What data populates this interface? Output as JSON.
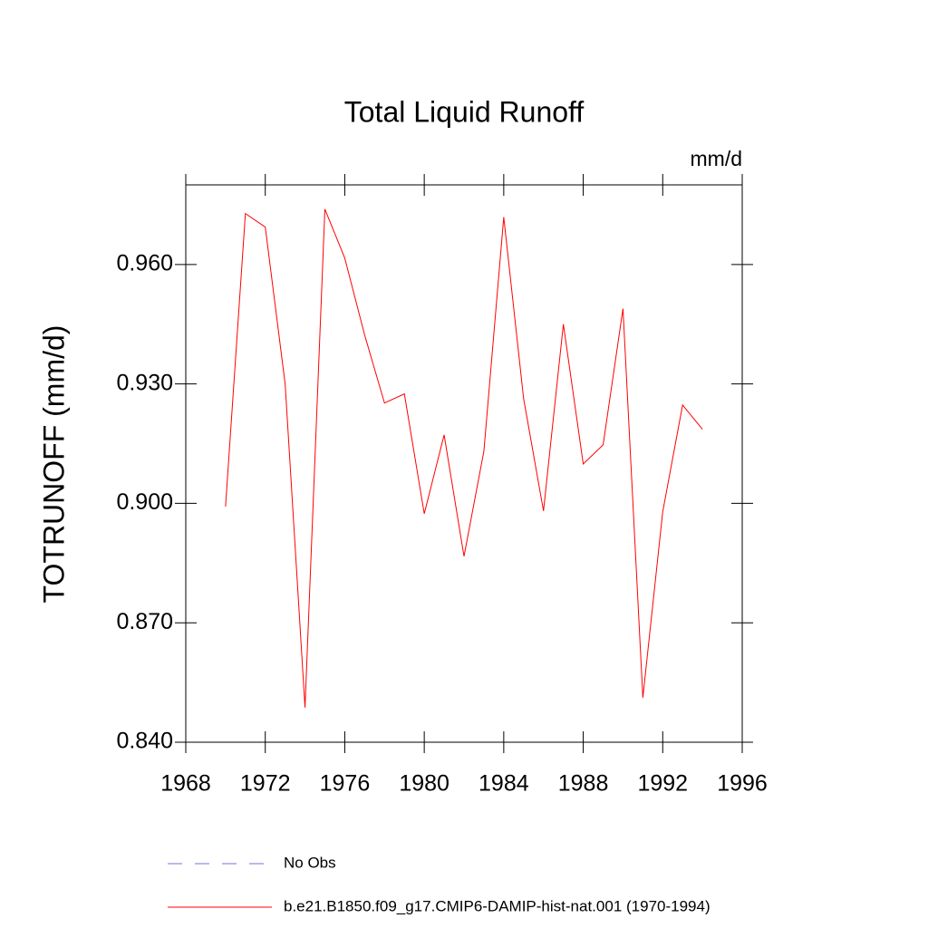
{
  "chart_data": {
    "type": "line",
    "title": "Total Liquid Runoff",
    "units": "mm/d",
    "ylabel": "TOTRUNOFF  (mm/d)",
    "x": [
      1970,
      1971,
      1972,
      1973,
      1974,
      1975,
      1976,
      1977,
      1978,
      1979,
      1980,
      1981,
      1982,
      1983,
      1984,
      1985,
      1986,
      1987,
      1988,
      1989,
      1990,
      1991,
      1992,
      1993,
      1994
    ],
    "series": [
      {
        "name": "No Obs",
        "color": "#7070e0",
        "dash": true,
        "values": [
          null,
          null,
          null,
          null,
          null,
          null,
          null,
          null,
          null,
          null,
          null,
          null,
          null,
          null,
          null,
          null,
          null,
          null,
          null,
          null,
          null,
          null,
          null,
          null,
          null
        ]
      },
      {
        "name": "b.e21.B1850.f09_g17.CMIP6-DAMIP-hist-nat.001 (1970-1994)",
        "color": "#ff0000",
        "dash": false,
        "values": [
          0.8992,
          0.9728,
          0.9694,
          0.93,
          0.8487,
          0.9739,
          0.9616,
          0.9423,
          0.9252,
          0.9275,
          0.8974,
          0.9172,
          0.8867,
          0.9131,
          0.9719,
          0.9263,
          0.8981,
          0.945,
          0.9099,
          0.9147,
          0.9489,
          0.8512,
          0.8979,
          0.9247,
          0.9186
        ]
      }
    ],
    "xlim": [
      1968,
      1996
    ],
    "xticks": [
      1968,
      1972,
      1976,
      1980,
      1984,
      1988,
      1992,
      1996
    ],
    "ylim": [
      0.84,
      0.98
    ],
    "yticks": [
      {
        "value": 0.84,
        "label": "0.840"
      },
      {
        "value": 0.87,
        "label": "0.870"
      },
      {
        "value": 0.9,
        "label": "0.900"
      },
      {
        "value": 0.93,
        "label": "0.930"
      },
      {
        "value": 0.96,
        "label": "0.960"
      }
    ]
  }
}
